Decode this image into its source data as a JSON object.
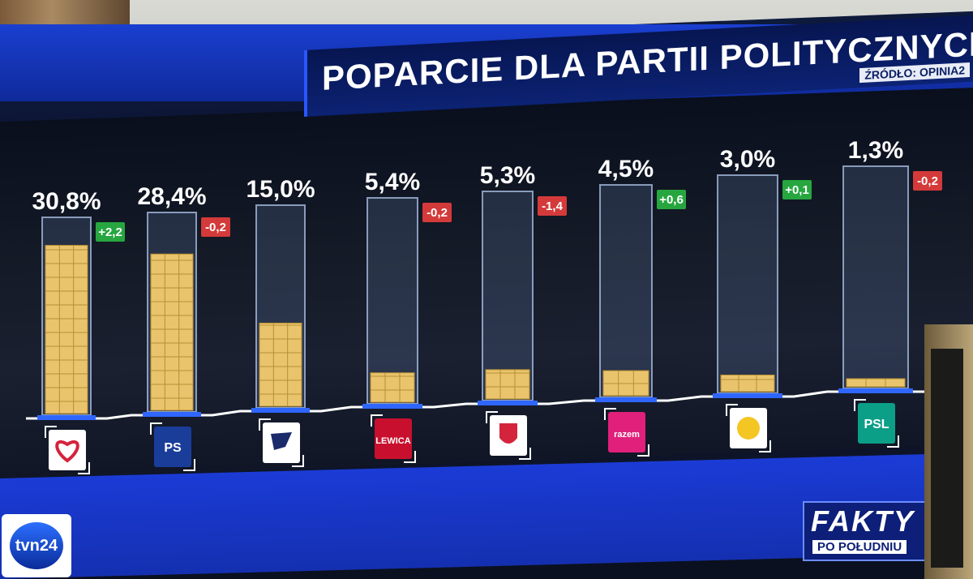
{
  "title": "POPARCIE DLA PARTII POLITYCZNYCH",
  "source": "ŹRÓDŁO: OPINIA2",
  "colors": {
    "bar_fill": "#e9c46c",
    "bar_glass": "#7fa0d8",
    "positive": "#27a640",
    "negative": "#d43a3a",
    "accent": "#1a3fd0"
  },
  "chart_data": {
    "type": "bar",
    "title": "POPARCIE DLA PARTII POLITYCZNYCH",
    "categories": [
      "Koalicja Obywatelska",
      "PiS",
      "Konfederacja",
      "Lewica",
      "Bezpartyjni Samorządowcy",
      "Razem",
      "Polska 2050",
      "PSL"
    ],
    "values": [
      30.8,
      28.4,
      15.0,
      5.4,
      5.3,
      4.5,
      3.0,
      1.3
    ],
    "value_labels": [
      "30,8%",
      "28,4%",
      "15,0%",
      "5,4%",
      "5,3%",
      "4,5%",
      "3,0%",
      "1,3%"
    ],
    "change_labels": [
      "+2,2",
      "-0,2",
      "",
      "-0,2",
      "-1,4",
      "+0,6",
      "+0,1",
      "-0,2"
    ],
    "changes": [
      2.2,
      -0.2,
      null,
      -0.2,
      -1.4,
      0.6,
      0.1,
      -0.2
    ],
    "logo_texts": [
      "",
      "PS",
      "",
      "LEWICA",
      "",
      "razem",
      "",
      "PSL"
    ],
    "ylim": [
      0,
      35
    ],
    "grid": false,
    "legend": "none"
  },
  "branding": {
    "channel": "tvn24",
    "program_title": "FAKTY",
    "program_subtitle": "PO POŁUDNIU"
  }
}
